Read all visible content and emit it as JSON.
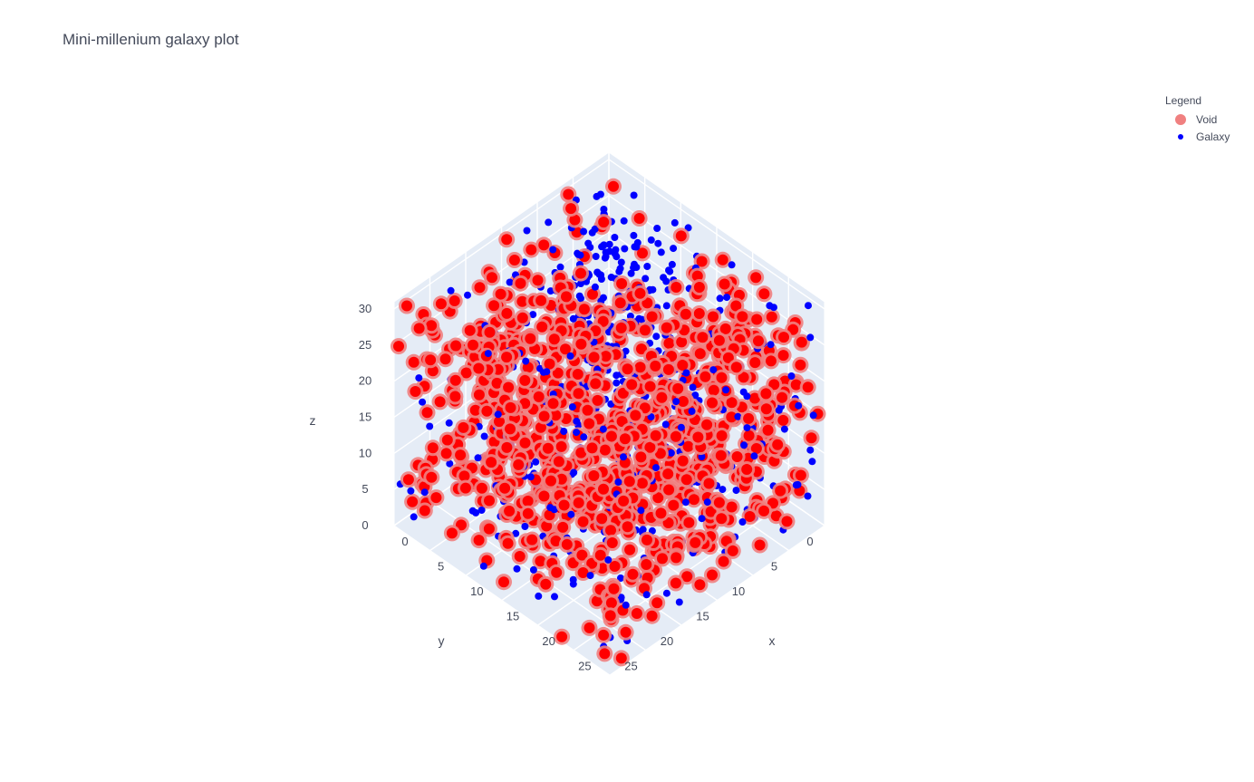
{
  "chart_data": {
    "type": "scatter",
    "title": "Mini-millenium galaxy plot",
    "legend": {
      "title": "Legend",
      "placement": "top-right"
    },
    "axes": {
      "x": {
        "label": "x",
        "ticks": [
          0,
          5,
          10,
          15,
          20,
          25
        ],
        "range": [
          0,
          30
        ]
      },
      "y": {
        "label": "y",
        "ticks": [
          0,
          5,
          10,
          15,
          20,
          25
        ],
        "range": [
          0,
          30
        ]
      },
      "z": {
        "label": "z",
        "ticks": [
          0,
          5,
          10,
          15,
          20,
          25,
          30
        ],
        "range": [
          0,
          31
        ]
      }
    },
    "grid": true,
    "series": [
      {
        "name": "Void",
        "color": "#ff0000",
        "halo_color": "#f08080",
        "marker": "large-circle"
      },
      {
        "name": "Galaxy",
        "color": "#0000ff",
        "marker": "small-circle"
      }
    ]
  }
}
